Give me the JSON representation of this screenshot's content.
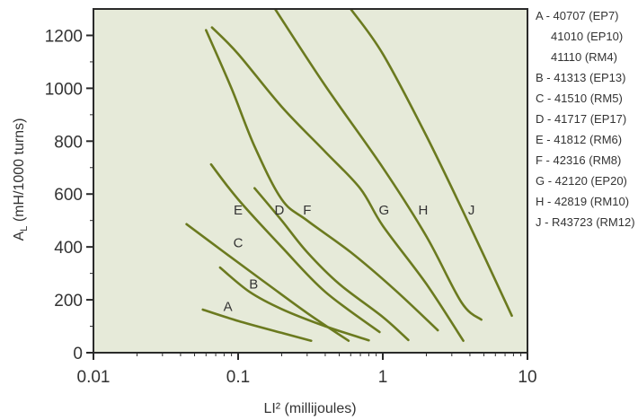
{
  "chart_data": {
    "type": "line",
    "title": "",
    "xlabel": "LI² (millijoules)",
    "ylabel": "AL (mH/1000 turns)",
    "ylabel_main": "A",
    "ylabel_sub": "L",
    "ylabel_rest": " (mH/1000 turns)",
    "xscale": "log",
    "xlim": [
      0.01,
      10
    ],
    "ylim": [
      0,
      1300
    ],
    "x_ticks": [
      0.01,
      0.1,
      1,
      10
    ],
    "x_tick_labels": [
      "0.01",
      "0.1",
      "1",
      "10"
    ],
    "y_ticks": [
      0,
      200,
      400,
      600,
      800,
      1000,
      1200
    ],
    "y_tick_labels": [
      "0",
      "200",
      "400",
      "600",
      "800",
      "1000",
      "1200"
    ],
    "grid": false,
    "background": "#e6ead9",
    "line_color": "#6b7a1f",
    "legend_position": "right-outside",
    "legend": [
      "A - 40707 (EP7)",
      "41010 (EP10)",
      "41110 (RM4)",
      "B - 41313 (EP13)",
      "C - 41510 (RM5)",
      "D - 41717 (EP17)",
      "E - 41812 (RM6)",
      "F - 42316 (RM8)",
      "G - 42120 (EP20)",
      "H - 42819 (RM10)",
      "J - R43723 (RM12)"
    ],
    "series": [
      {
        "name": "A",
        "label_at": [
          0.085,
          175
        ],
        "x": [
          0.057,
          0.1,
          0.2,
          0.32
        ],
        "y": [
          163,
          120,
          75,
          45
        ]
      },
      {
        "name": "B",
        "label_at": [
          0.128,
          260
        ],
        "x": [
          0.075,
          0.12,
          0.2,
          0.4,
          0.8
        ],
        "y": [
          322,
          230,
          165,
          100,
          47
        ]
      },
      {
        "name": "C",
        "label_at": [
          0.1,
          415
        ],
        "x": [
          0.044,
          0.08,
          0.15,
          0.3,
          0.58
        ],
        "y": [
          486,
          380,
          270,
          150,
          45
        ]
      },
      {
        "name": "D",
        "label_at": [
          0.193,
          540
        ],
        "x": [
          0.13,
          0.2,
          0.3,
          0.5,
          1.0,
          1.5
        ],
        "y": [
          622,
          500,
          380,
          260,
          135,
          48
        ]
      },
      {
        "name": "E",
        "label_at": [
          0.1,
          540
        ],
        "x": [
          0.065,
          0.1,
          0.2,
          0.4,
          0.95
        ],
        "y": [
          712,
          580,
          400,
          230,
          78
        ]
      },
      {
        "name": "F",
        "label_at": [
          0.3,
          540
        ],
        "x": [
          0.06,
          0.09,
          0.13,
          0.2,
          0.3,
          0.6,
          1.2,
          2.4
        ],
        "y": [
          1220,
          1000,
          780,
          580,
          500,
          380,
          240,
          85
        ]
      },
      {
        "name": "G",
        "label_at": [
          1.02,
          540
        ],
        "x": [
          0.066,
          0.1,
          0.2,
          0.4,
          0.7,
          1.0,
          2.0,
          3.6
        ],
        "y": [
          1230,
          1130,
          930,
          760,
          620,
          480,
          260,
          45
        ]
      },
      {
        "name": "H",
        "label_at": [
          1.9,
          540
        ],
        "x": [
          0.18,
          0.4,
          1.0,
          2.0,
          3.5,
          4.8
        ],
        "y": [
          1300,
          1010,
          700,
          440,
          190,
          125
        ]
      },
      {
        "name": "J",
        "label_at": [
          4.1,
          540
        ],
        "x": [
          0.6,
          1.0,
          2.0,
          4.0,
          7.8
        ],
        "y": [
          1300,
          1130,
          820,
          480,
          140
        ]
      }
    ]
  }
}
